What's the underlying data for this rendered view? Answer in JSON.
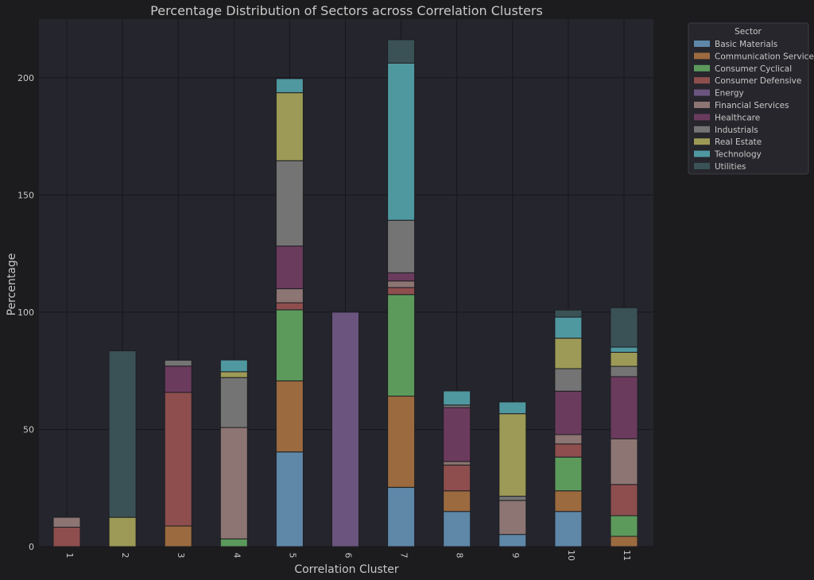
{
  "chart_data": {
    "type": "bar",
    "stacked": true,
    "title": "Percentage Distribution of Sectors across Correlation Clusters",
    "xlabel": "Correlation Cluster",
    "ylabel": "Percentage",
    "ylim": [
      0,
      225
    ],
    "yticks": [
      0,
      50,
      100,
      150,
      200
    ],
    "grid": true,
    "legend_title": "Sector",
    "legend_position": "outside top-right",
    "categories": [
      "1",
      "2",
      "3",
      "4",
      "5",
      "6",
      "7",
      "8",
      "9",
      "10",
      "11"
    ],
    "series": [
      {
        "name": "Basic Materials",
        "color": "#5e87a8",
        "values": [
          0,
          0,
          0,
          0,
          40.4,
          0,
          25.3,
          15.0,
          5.2,
          15.0,
          0
        ]
      },
      {
        "name": "Communication Services",
        "color": "#9b6a3f",
        "values": [
          0,
          0,
          8.8,
          0,
          30.3,
          0,
          38.9,
          8.8,
          0,
          8.8,
          4.4
        ]
      },
      {
        "name": "Consumer Cyclical",
        "color": "#5c9a5c",
        "values": [
          0,
          0,
          0,
          3.3,
          30.3,
          0,
          43.3,
          0,
          0,
          14.4,
          8.8
        ]
      },
      {
        "name": "Consumer Defensive",
        "color": "#8e4e4e",
        "values": [
          8.3,
          0,
          57.0,
          0,
          3.0,
          0,
          3.0,
          11.0,
          0,
          5.6,
          13.3
        ]
      },
      {
        "name": "Energy",
        "color": "#6b557e",
        "values": [
          0,
          0,
          0,
          0,
          0,
          100.0,
          0,
          0,
          0,
          0,
          0
        ]
      },
      {
        "name": "Financial Services",
        "color": "#8c7572",
        "values": [
          4.2,
          0,
          0,
          47.5,
          6.0,
          0,
          2.8,
          1.5,
          14.5,
          4.0,
          19.5
        ]
      },
      {
        "name": "Healthcare",
        "color": "#6b3b5e",
        "values": [
          0,
          0,
          11.2,
          0,
          18.2,
          0,
          3.5,
          23.0,
          0,
          18.5,
          26.5
        ]
      },
      {
        "name": "Industrials",
        "color": "#747474",
        "values": [
          0,
          0,
          2.5,
          21.3,
          36.4,
          0,
          22.4,
          1.1,
          1.8,
          9.6,
          4.4
        ]
      },
      {
        "name": "Real Estate",
        "color": "#9c9a56",
        "values": [
          0,
          12.5,
          0,
          2.5,
          29.0,
          0,
          0,
          0,
          35.2,
          13.0,
          6.0
        ]
      },
      {
        "name": "Technology",
        "color": "#4f98a0",
        "values": [
          0,
          0,
          0,
          5.0,
          6.0,
          0,
          67.0,
          6.0,
          5.0,
          9.0,
          2.2
        ]
      },
      {
        "name": "Utilities",
        "color": "#3a5256",
        "values": [
          0,
          71.0,
          0,
          0,
          0,
          0,
          10.0,
          0,
          0,
          3.0,
          16.8
        ]
      }
    ]
  }
}
